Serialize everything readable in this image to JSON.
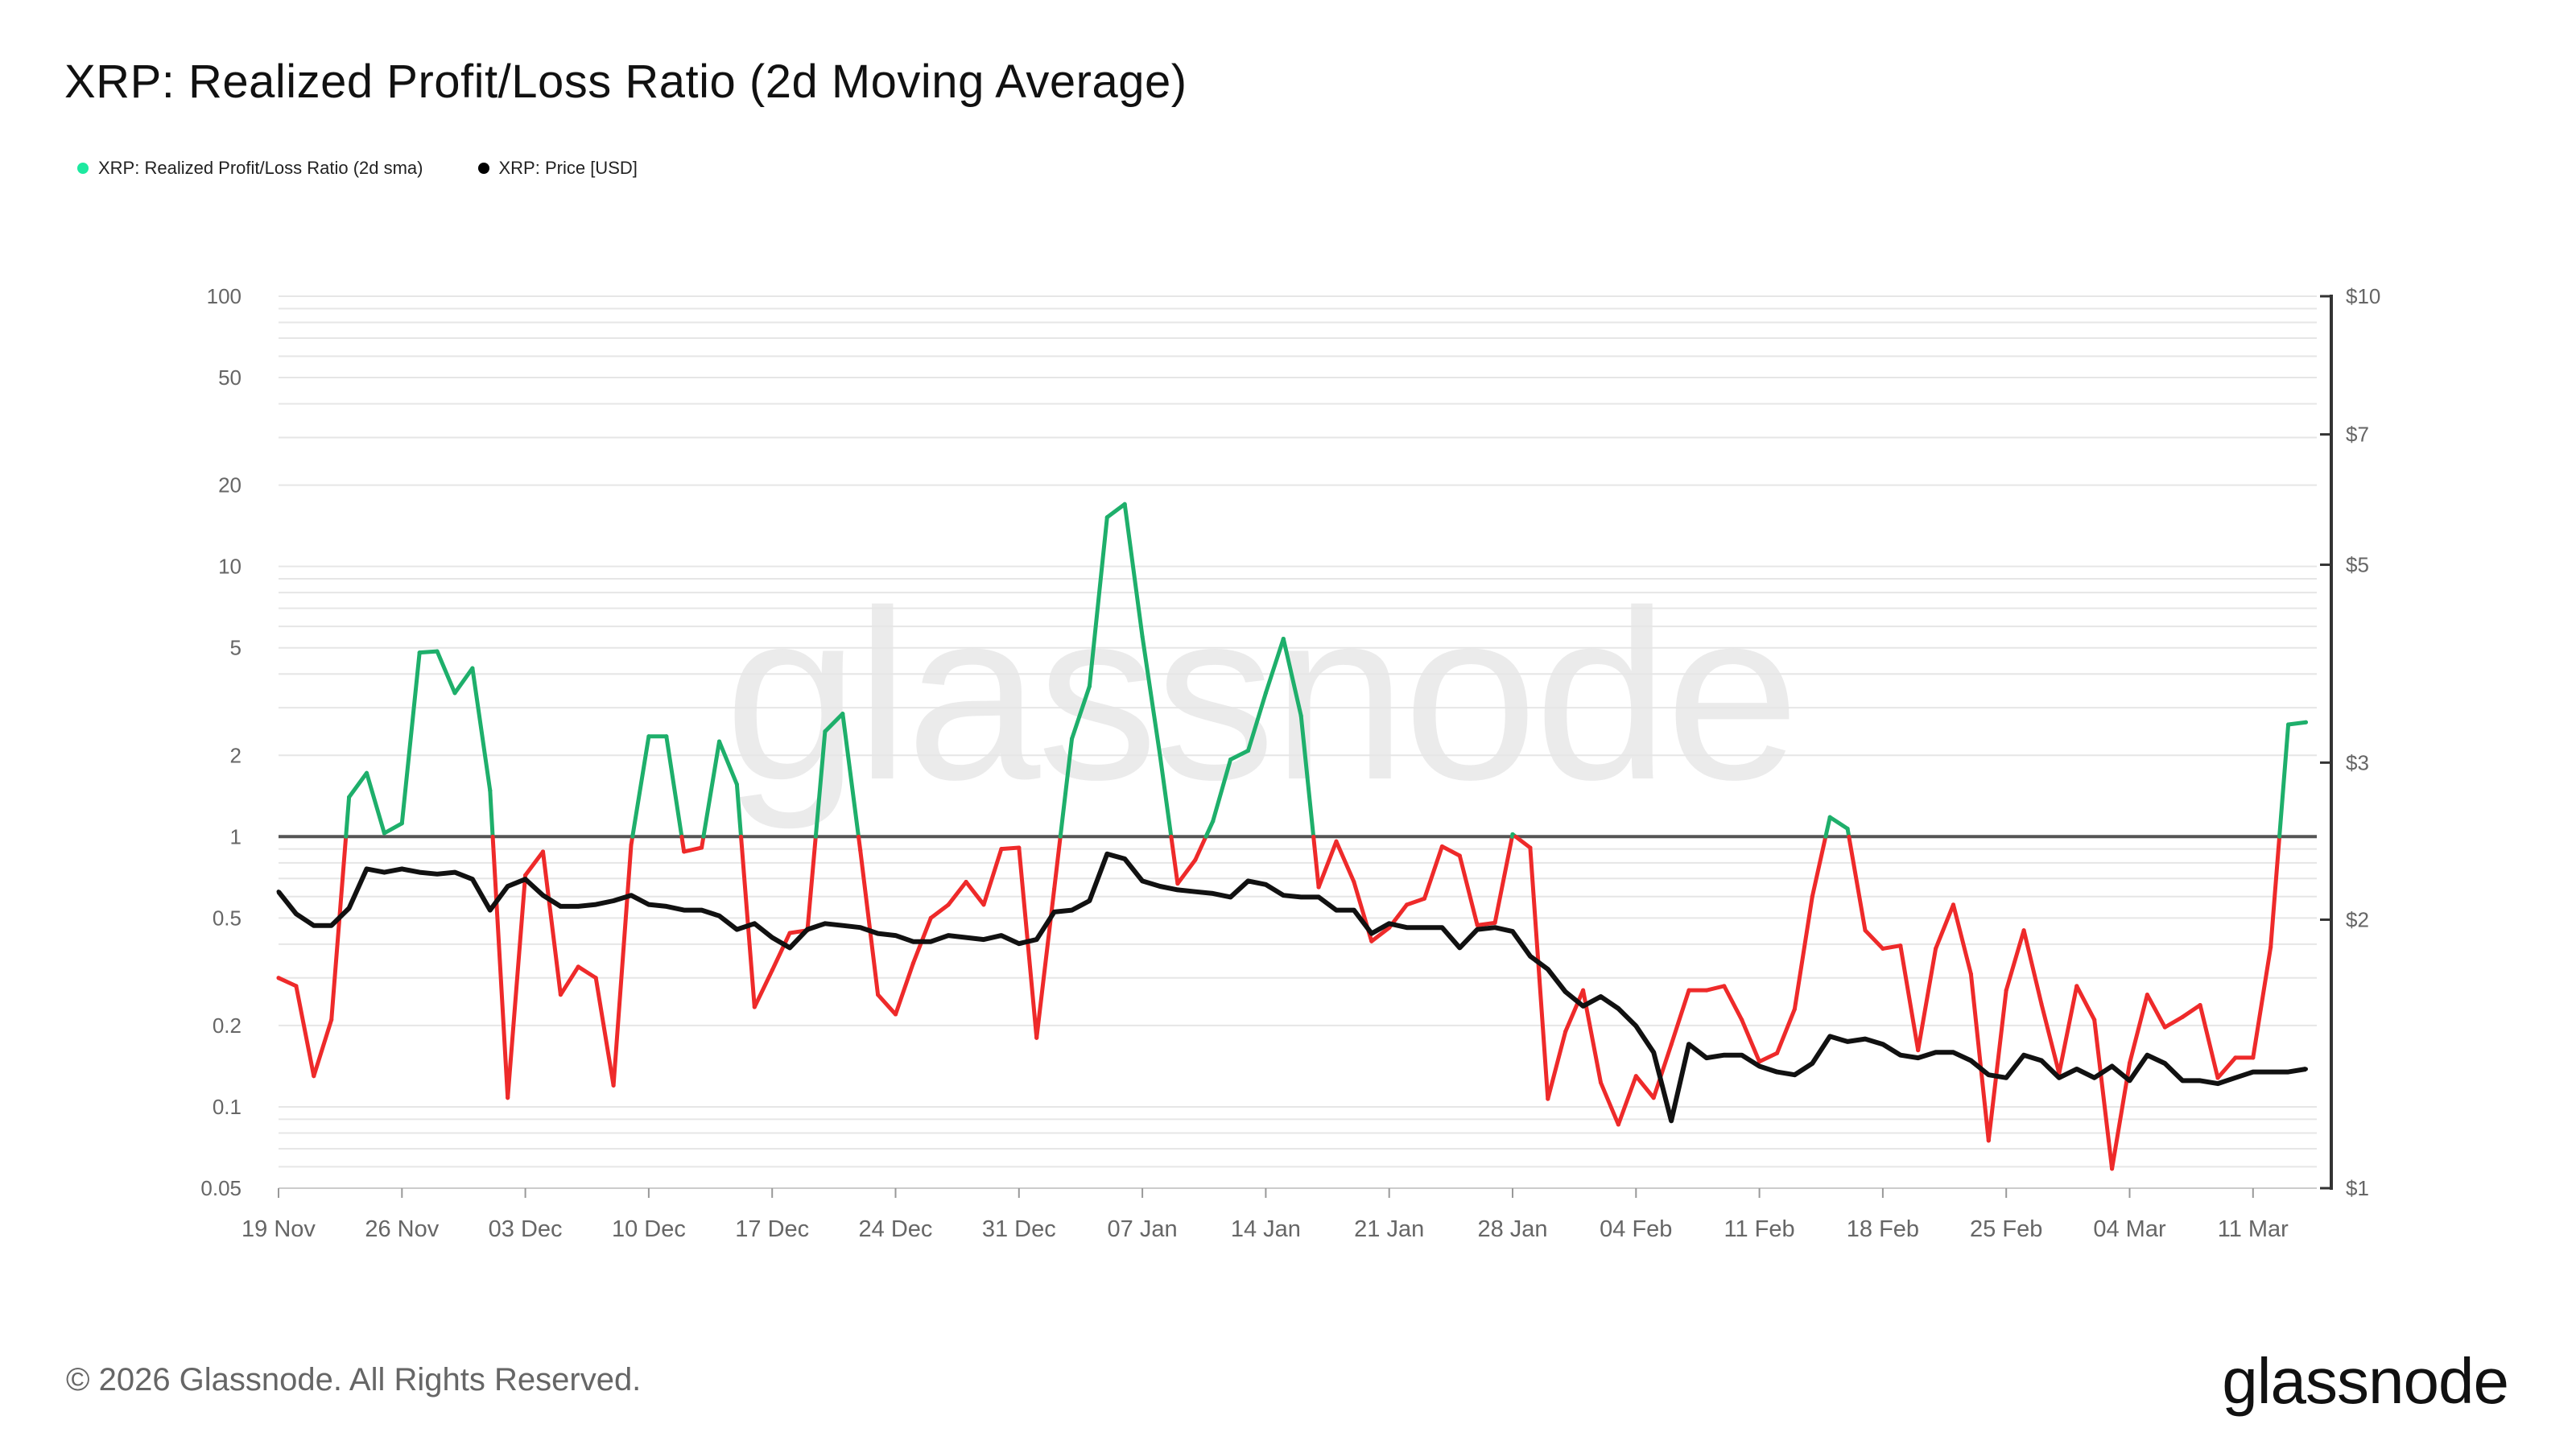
{
  "title": "XRP: Realized Profit/Loss Ratio (2d Moving Average)",
  "legend": [
    {
      "label": "XRP: Realized Profit/Loss Ratio (2d sma)",
      "color": "#1de9a0"
    },
    {
      "label": "XRP: Price [USD]",
      "color": "#000000"
    }
  ],
  "footer": {
    "copyright": "© 2026 Glassnode. All Rights Reserved.",
    "logo": "glassnode",
    "watermark": "glassnode"
  },
  "colors": {
    "profit": "#1eaf6b",
    "loss": "#ee2a2a",
    "price": "#111111",
    "baseline": "#555555",
    "grid": "#e6e6e6"
  },
  "chart_data": {
    "type": "line",
    "title": "XRP: Realized Profit/Loss Ratio (2d Moving Average)",
    "x_start": "19 Nov",
    "x_step_days": 1,
    "x_ticks": [
      "19 Nov",
      "26 Nov",
      "03 Dec",
      "10 Dec",
      "17 Dec",
      "24 Dec",
      "31 Dec",
      "07 Jan",
      "14 Jan",
      "21 Jan",
      "28 Jan",
      "04 Feb",
      "11 Feb",
      "18 Feb",
      "25 Feb",
      "04 Mar",
      "11 Mar"
    ],
    "y_left": {
      "scale": "log",
      "ticks": [
        "100",
        "50",
        "20",
        "10",
        "5",
        "2",
        "1",
        "0.5",
        "0.2",
        "0.1",
        "0.05"
      ],
      "tick_values": [
        100,
        50,
        20,
        10,
        5,
        2,
        1,
        0.5,
        0.2,
        0.1,
        0.05
      ],
      "range": [
        0.05,
        100
      ]
    },
    "y_right": {
      "scale": "log",
      "ticks": [
        "$10",
        "$7",
        "$5",
        "$3",
        "$2",
        "$1"
      ],
      "tick_values": [
        10,
        7,
        5,
        3,
        2,
        1
      ],
      "range": [
        1,
        10
      ]
    },
    "baseline": 1,
    "series": [
      {
        "name": "XRP: Realized Profit/Loss Ratio (2d sma)",
        "axis": "left",
        "values": [
          0.3,
          0.28,
          0.13,
          0.21,
          1.4,
          1.72,
          1.03,
          1.12,
          4.8,
          4.85,
          3.4,
          4.2,
          1.48,
          0.108,
          0.72,
          0.88,
          0.26,
          0.33,
          0.3,
          0.12,
          0.93,
          2.35,
          2.35,
          0.88,
          0.91,
          2.25,
          1.56,
          0.234,
          0.32,
          0.44,
          0.45,
          2.45,
          2.85,
          0.89,
          0.26,
          0.22,
          0.34,
          0.5,
          0.56,
          0.68,
          0.56,
          0.9,
          0.91,
          0.18,
          0.64,
          2.3,
          3.6,
          15.2,
          17.0,
          5.5,
          2.0,
          0.67,
          0.82,
          1.14,
          1.93,
          2.08,
          3.4,
          5.4,
          2.8,
          0.65,
          0.96,
          0.68,
          0.41,
          0.46,
          0.56,
          0.59,
          0.92,
          0.85,
          0.47,
          0.48,
          1.02,
          0.91,
          0.107,
          0.19,
          0.27,
          0.123,
          0.086,
          0.13,
          0.108,
          0.17,
          0.27,
          0.27,
          0.28,
          0.21,
          0.147,
          0.158,
          0.23,
          0.6,
          1.18,
          1.07,
          0.45,
          0.385,
          0.395,
          0.162,
          0.385,
          0.56,
          0.31,
          0.075,
          0.27,
          0.45,
          0.24,
          0.133,
          0.28,
          0.21,
          0.059,
          0.145,
          0.26,
          0.197,
          0.215,
          0.238,
          0.128,
          0.152,
          0.152,
          0.39,
          2.6,
          2.65
        ]
      },
      {
        "name": "XRP: Price [USD]",
        "axis": "right",
        "values": [
          2.15,
          2.03,
          1.97,
          1.97,
          2.06,
          2.28,
          2.26,
          2.28,
          2.26,
          2.25,
          2.26,
          2.22,
          2.05,
          2.18,
          2.22,
          2.13,
          2.07,
          2.07,
          2.08,
          2.1,
          2.13,
          2.08,
          2.07,
          2.05,
          2.05,
          2.02,
          1.95,
          1.98,
          1.91,
          1.86,
          1.95,
          1.98,
          1.97,
          1.96,
          1.93,
          1.92,
          1.89,
          1.89,
          1.92,
          1.91,
          1.9,
          1.92,
          1.88,
          1.9,
          2.04,
          2.05,
          2.1,
          2.37,
          2.34,
          2.21,
          2.18,
          2.16,
          2.15,
          2.14,
          2.12,
          2.21,
          2.19,
          2.13,
          2.12,
          2.12,
          2.05,
          2.05,
          1.93,
          1.98,
          1.96,
          1.96,
          1.96,
          1.86,
          1.95,
          1.96,
          1.94,
          1.82,
          1.76,
          1.66,
          1.6,
          1.64,
          1.59,
          1.52,
          1.42,
          1.19,
          1.45,
          1.4,
          1.41,
          1.41,
          1.37,
          1.35,
          1.34,
          1.38,
          1.48,
          1.46,
          1.47,
          1.45,
          1.41,
          1.4,
          1.42,
          1.42,
          1.39,
          1.34,
          1.33,
          1.41,
          1.39,
          1.33,
          1.36,
          1.33,
          1.37,
          1.32,
          1.41,
          1.38,
          1.32,
          1.32,
          1.31,
          1.33,
          1.35,
          1.35,
          1.35,
          1.36
        ]
      }
    ]
  }
}
